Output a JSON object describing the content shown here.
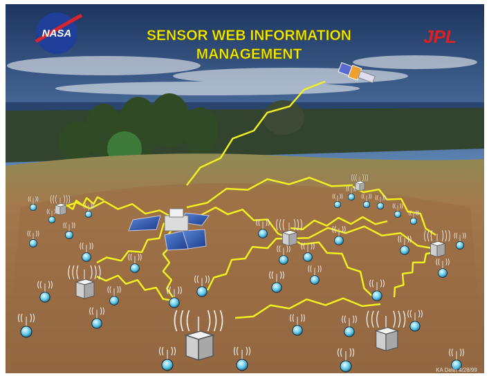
{
  "logo_left": "NASA",
  "logo_right": "JPL",
  "title_lines": [
    "SENSOR WEB INFORMATION",
    "MANAGEMENT"
  ],
  "credit": "KA Delin 4/28/99"
}
